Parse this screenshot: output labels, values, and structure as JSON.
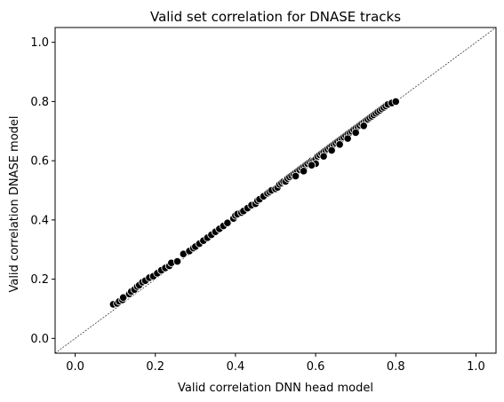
{
  "chart_data": {
    "type": "scatter",
    "title": "Valid set correlation for DNASE tracks",
    "xlabel": "Valid correlation DNN head model",
    "ylabel": "Valid correlation DNASE model",
    "xlim": [
      -0.05,
      1.05
    ],
    "ylim": [
      -0.05,
      1.05
    ],
    "xticks": [
      "0.0",
      "0.2",
      "0.4",
      "0.6",
      "0.8",
      "1.0"
    ],
    "yticks": [
      "0.0",
      "0.2",
      "0.4",
      "0.6",
      "0.8",
      "1.0"
    ],
    "grid": false,
    "reference_line": "y = x (dashed)",
    "marker_color": "#000000",
    "marker_edge_color": "#ffffff",
    "points": [
      [
        0.095,
        0.115
      ],
      [
        0.105,
        0.118
      ],
      [
        0.11,
        0.125
      ],
      [
        0.118,
        0.13
      ],
      [
        0.12,
        0.138
      ],
      [
        0.135,
        0.15
      ],
      [
        0.14,
        0.158
      ],
      [
        0.148,
        0.165
      ],
      [
        0.155,
        0.175
      ],
      [
        0.16,
        0.18
      ],
      [
        0.168,
        0.19
      ],
      [
        0.175,
        0.195
      ],
      [
        0.185,
        0.205
      ],
      [
        0.195,
        0.21
      ],
      [
        0.205,
        0.22
      ],
      [
        0.215,
        0.23
      ],
      [
        0.225,
        0.238
      ],
      [
        0.235,
        0.245
      ],
      [
        0.24,
        0.255
      ],
      [
        0.255,
        0.26
      ],
      [
        0.27,
        0.285
      ],
      [
        0.285,
        0.295
      ],
      [
        0.295,
        0.305
      ],
      [
        0.3,
        0.31
      ],
      [
        0.31,
        0.32
      ],
      [
        0.32,
        0.33
      ],
      [
        0.33,
        0.34
      ],
      [
        0.34,
        0.35
      ],
      [
        0.35,
        0.36
      ],
      [
        0.36,
        0.37
      ],
      [
        0.37,
        0.38
      ],
      [
        0.38,
        0.39
      ],
      [
        0.395,
        0.405
      ],
      [
        0.4,
        0.415
      ],
      [
        0.405,
        0.42
      ],
      [
        0.415,
        0.425
      ],
      [
        0.42,
        0.43
      ],
      [
        0.43,
        0.44
      ],
      [
        0.44,
        0.45
      ],
      [
        0.45,
        0.455
      ],
      [
        0.455,
        0.465
      ],
      [
        0.46,
        0.47
      ],
      [
        0.47,
        0.48
      ],
      [
        0.48,
        0.49
      ],
      [
        0.485,
        0.495
      ],
      [
        0.49,
        0.5
      ],
      [
        0.5,
        0.505
      ],
      [
        0.505,
        0.51
      ],
      [
        0.51,
        0.52
      ],
      [
        0.515,
        0.525
      ],
      [
        0.52,
        0.53
      ],
      [
        0.525,
        0.53
      ],
      [
        0.53,
        0.54
      ],
      [
        0.535,
        0.545
      ],
      [
        0.54,
        0.55
      ],
      [
        0.545,
        0.555
      ],
      [
        0.55,
        0.56
      ],
      [
        0.555,
        0.565
      ],
      [
        0.56,
        0.57
      ],
      [
        0.565,
        0.575
      ],
      [
        0.57,
        0.58
      ],
      [
        0.575,
        0.585
      ],
      [
        0.58,
        0.59
      ],
      [
        0.585,
        0.595
      ],
      [
        0.59,
        0.6
      ],
      [
        0.595,
        0.6
      ],
      [
        0.6,
        0.605
      ],
      [
        0.605,
        0.615
      ],
      [
        0.61,
        0.62
      ],
      [
        0.615,
        0.625
      ],
      [
        0.62,
        0.63
      ],
      [
        0.625,
        0.635
      ],
      [
        0.63,
        0.64
      ],
      [
        0.635,
        0.645
      ],
      [
        0.64,
        0.65
      ],
      [
        0.645,
        0.655
      ],
      [
        0.65,
        0.66
      ],
      [
        0.655,
        0.665
      ],
      [
        0.66,
        0.67
      ],
      [
        0.665,
        0.675
      ],
      [
        0.67,
        0.68
      ],
      [
        0.675,
        0.685
      ],
      [
        0.68,
        0.69
      ],
      [
        0.685,
        0.695
      ],
      [
        0.69,
        0.7
      ],
      [
        0.695,
        0.705
      ],
      [
        0.7,
        0.71
      ],
      [
        0.705,
        0.715
      ],
      [
        0.71,
        0.72
      ],
      [
        0.715,
        0.725
      ],
      [
        0.72,
        0.73
      ],
      [
        0.725,
        0.735
      ],
      [
        0.73,
        0.74
      ],
      [
        0.735,
        0.745
      ],
      [
        0.74,
        0.75
      ],
      [
        0.745,
        0.755
      ],
      [
        0.75,
        0.76
      ],
      [
        0.755,
        0.765
      ],
      [
        0.76,
        0.77
      ],
      [
        0.765,
        0.775
      ],
      [
        0.77,
        0.78
      ],
      [
        0.775,
        0.785
      ],
      [
        0.78,
        0.79
      ],
      [
        0.79,
        0.795
      ],
      [
        0.8,
        0.8
      ],
      [
        0.6,
        0.59
      ],
      [
        0.62,
        0.615
      ],
      [
        0.64,
        0.635
      ],
      [
        0.66,
        0.655
      ],
      [
        0.68,
        0.675
      ],
      [
        0.55,
        0.548
      ],
      [
        0.57,
        0.565
      ],
      [
        0.59,
        0.585
      ],
      [
        0.7,
        0.695
      ],
      [
        0.72,
        0.718
      ]
    ]
  }
}
